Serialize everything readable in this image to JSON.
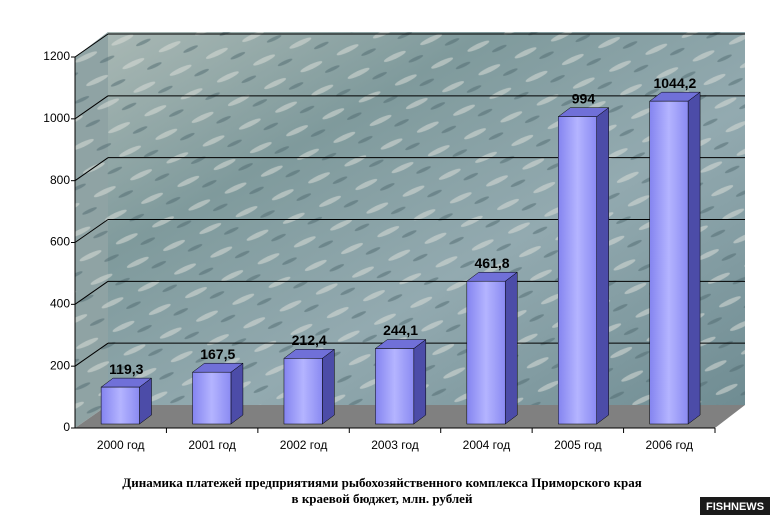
{
  "chart_data": {
    "type": "bar3d",
    "title": [
      "Динамика платежей предприятиями рыбохозяйственного комплекса Приморского края",
      "в краевой бюджет, млн. рублей"
    ],
    "categories": [
      "2000 год",
      "2001 год",
      "2002 год",
      "2003 год",
      "2004 год",
      "2005 год",
      "2006 год"
    ],
    "values": [
      119.3,
      167.5,
      212.4,
      244.1,
      461.8,
      994,
      1044.2
    ],
    "value_labels": [
      "119,3",
      "167,5",
      "212,4",
      "244,1",
      "461,8",
      "994",
      "1044,2"
    ],
    "color": "#9999ff",
    "ylim": [
      0,
      1200
    ],
    "yticks": [
      0,
      200,
      400,
      600,
      800,
      1000,
      1200
    ],
    "grid": true,
    "logo": "FISHNEWS"
  }
}
